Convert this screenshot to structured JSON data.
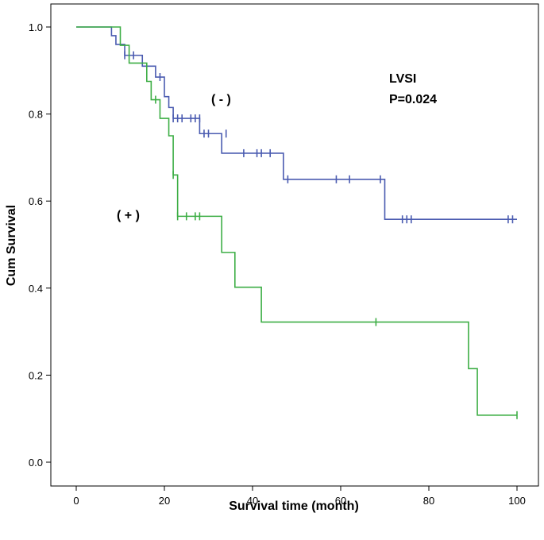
{
  "chart_data": {
    "type": "line",
    "subtype": "kaplan-meier",
    "xlabel": "Survival time (month)",
    "ylabel": "Cum Survival",
    "xlim": [
      0,
      100
    ],
    "ylim": [
      0,
      1.0
    ],
    "xticks": [
      0,
      20,
      40,
      60,
      80,
      100
    ],
    "yticks": [
      0.0,
      0.2,
      0.4,
      0.6,
      0.8,
      1.0
    ],
    "ytick_labels": [
      "0.0",
      "0.2",
      "0.4",
      "0.6",
      "0.8",
      "1.0"
    ],
    "grid": false,
    "annotations": {
      "title": "LVSI",
      "pvalue": "P=0.024",
      "neg_label": "( - )",
      "pos_label": "( + )"
    },
    "series": [
      {
        "key": "neg",
        "color": "#4a5bb0",
        "steps": [
          [
            0,
            1.0
          ],
          [
            8,
            0.98
          ],
          [
            9,
            0.96
          ],
          [
            11,
            0.935
          ],
          [
            15,
            0.91
          ],
          [
            18,
            0.885
          ],
          [
            20,
            0.84
          ],
          [
            21,
            0.815
          ],
          [
            22,
            0.79
          ],
          [
            28,
            0.755
          ],
          [
            33,
            0.71
          ],
          [
            47,
            0.65
          ],
          [
            70,
            0.558
          ],
          [
            100,
            0.558
          ]
        ],
        "censored": [
          [
            11,
            0.935
          ],
          [
            13,
            0.935
          ],
          [
            19,
            0.885
          ],
          [
            22,
            0.79
          ],
          [
            23,
            0.79
          ],
          [
            24,
            0.79
          ],
          [
            26,
            0.79
          ],
          [
            27,
            0.79
          ],
          [
            28,
            0.79
          ],
          [
            29,
            0.755
          ],
          [
            30,
            0.755
          ],
          [
            34,
            0.755
          ],
          [
            38,
            0.71
          ],
          [
            41,
            0.71
          ],
          [
            42,
            0.71
          ],
          [
            44,
            0.71
          ],
          [
            48,
            0.65
          ],
          [
            59,
            0.65
          ],
          [
            62,
            0.65
          ],
          [
            69,
            0.65
          ],
          [
            74,
            0.558
          ],
          [
            75,
            0.558
          ],
          [
            76,
            0.558
          ],
          [
            98,
            0.558
          ],
          [
            99,
            0.558
          ]
        ]
      },
      {
        "key": "pos",
        "color": "#3dae45",
        "steps": [
          [
            0,
            1.0
          ],
          [
            10,
            0.958
          ],
          [
            12,
            0.917
          ],
          [
            16,
            0.875
          ],
          [
            17,
            0.833
          ],
          [
            19,
            0.79
          ],
          [
            21,
            0.75
          ],
          [
            22,
            0.66
          ],
          [
            23,
            0.565
          ],
          [
            33,
            0.482
          ],
          [
            36,
            0.402
          ],
          [
            42,
            0.322
          ],
          [
            89,
            0.215
          ],
          [
            91,
            0.108
          ],
          [
            100,
            0.108
          ]
        ],
        "censored": [
          [
            18,
            0.833
          ],
          [
            22,
            0.66
          ],
          [
            23,
            0.565
          ],
          [
            25,
            0.565
          ],
          [
            27,
            0.565
          ],
          [
            28,
            0.565
          ],
          [
            68,
            0.322
          ],
          [
            100,
            0.108
          ]
        ]
      }
    ]
  }
}
